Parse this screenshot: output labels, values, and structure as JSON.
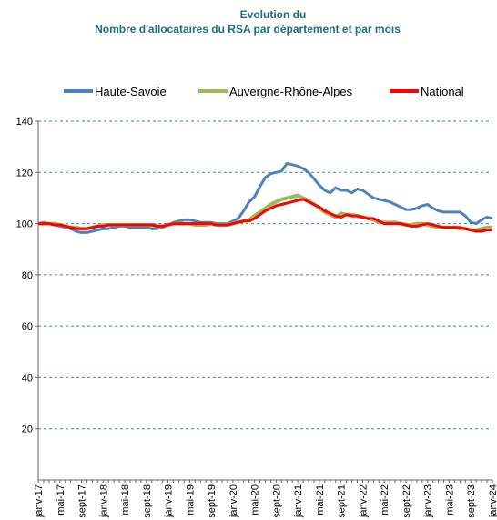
{
  "chart_data": {
    "type": "line",
    "title": "Evolution du",
    "subtitle": "Nombre d'allocataires du RSA par département et par mois",
    "categories": [
      "janv-17",
      null,
      null,
      null,
      "mai-17",
      null,
      null,
      null,
      "sept-17",
      null,
      null,
      null,
      "janv-18",
      null,
      null,
      null,
      "mai-18",
      null,
      null,
      null,
      "sept-18",
      null,
      null,
      null,
      "janv-19",
      null,
      null,
      null,
      "mai-19",
      null,
      null,
      null,
      "sept-19",
      null,
      null,
      null,
      "janv-20",
      null,
      null,
      null,
      "mai-20",
      null,
      null,
      null,
      "sept-20",
      null,
      null,
      null,
      "janv-21",
      null,
      null,
      null,
      "mai-21",
      null,
      null,
      null,
      "sept-21",
      null,
      null,
      null,
      "janv-22",
      null,
      null,
      null,
      "mai-22",
      null,
      null,
      null,
      "sept-22",
      null,
      null,
      null,
      "janv-23",
      null,
      null,
      null,
      "mai-23",
      null,
      null,
      null,
      "sept-23",
      null,
      null,
      null,
      "janv-24"
    ],
    "series": [
      {
        "name": "Haute-Savoie",
        "color": "#4f81bd",
        "values": [
          100,
          100.5,
          100,
          99.5,
          99,
          98.5,
          98,
          97,
          96.5,
          96.5,
          97,
          97.5,
          98,
          98,
          98.5,
          99,
          99,
          98.5,
          98.5,
          98.5,
          98.5,
          98,
          98,
          98.5,
          99.5,
          100.5,
          101,
          101.5,
          101.5,
          101,
          100.5,
          100.5,
          100.5,
          100,
          100,
          100,
          101,
          102,
          105,
          108.5,
          110.5,
          114.5,
          118,
          119.5,
          120,
          120.5,
          123.5,
          123,
          122.5,
          121.5,
          120,
          117.5,
          115,
          113,
          112,
          114,
          113,
          113,
          112,
          113.5,
          113,
          111.5,
          110,
          109.5,
          109,
          108.5,
          107.5,
          106.5,
          105.5,
          105.5,
          106,
          107,
          107.5,
          106,
          105,
          104.5,
          104.5,
          104.5,
          104.5,
          103,
          100.5,
          100,
          101.5,
          102.5,
          102
        ]
      },
      {
        "name": "Auvergne-Rhône-Alpes",
        "color": "#9bbb59",
        "values": [
          100,
          100,
          100,
          100,
          99.5,
          99,
          98.5,
          98.5,
          98,
          98,
          98.5,
          99,
          99.5,
          99.5,
          99.5,
          99.5,
          99.5,
          99.5,
          99.5,
          99.5,
          99.5,
          99.5,
          99,
          99,
          99.5,
          100,
          100,
          100,
          100,
          99.5,
          99.5,
          99.5,
          100,
          99.5,
          99.5,
          99.5,
          100,
          100.5,
          101,
          101.5,
          103,
          104.5,
          106,
          107.5,
          108.5,
          109.5,
          110,
          110.5,
          111,
          110,
          109,
          107.5,
          106,
          104.5,
          103.5,
          102.5,
          104,
          103.5,
          103.5,
          103,
          102.5,
          102,
          101.5,
          100.5,
          100.5,
          100.5,
          100.5,
          100,
          99.5,
          99.5,
          100,
          100,
          99.5,
          99,
          98.5,
          98.5,
          98.5,
          98.5,
          98,
          98,
          97.5,
          97.5,
          98,
          98.5,
          98.5
        ]
      },
      {
        "name": "National",
        "color": "#ff0000",
        "values": [
          100,
          100,
          100,
          99.5,
          99.5,
          99,
          98.5,
          98,
          98,
          98,
          98.5,
          99,
          99,
          99.5,
          99.5,
          99.5,
          99.5,
          99.5,
          99.5,
          99.5,
          99.5,
          99.5,
          99,
          99,
          99.5,
          100,
          100,
          100,
          100,
          100,
          100,
          100,
          100,
          99.5,
          99.5,
          99.5,
          100,
          100.5,
          101,
          101,
          102,
          103.5,
          105,
          106,
          107,
          107.5,
          108,
          108.5,
          109,
          109.5,
          108.5,
          107.5,
          106.5,
          105,
          104,
          103,
          102.5,
          103.5,
          103,
          103,
          102.5,
          102,
          102,
          101,
          100,
          100,
          100,
          100,
          99.5,
          99,
          99,
          99.5,
          100,
          99.5,
          99,
          98.5,
          98.5,
          98.5,
          98.5,
          98,
          97.5,
          97,
          97,
          97.5,
          97.5
        ]
      }
    ],
    "ylim": [
      0,
      140
    ],
    "yticks": [
      20,
      40,
      60,
      80,
      100,
      120,
      140
    ],
    "grid": true,
    "legend": "top"
  }
}
